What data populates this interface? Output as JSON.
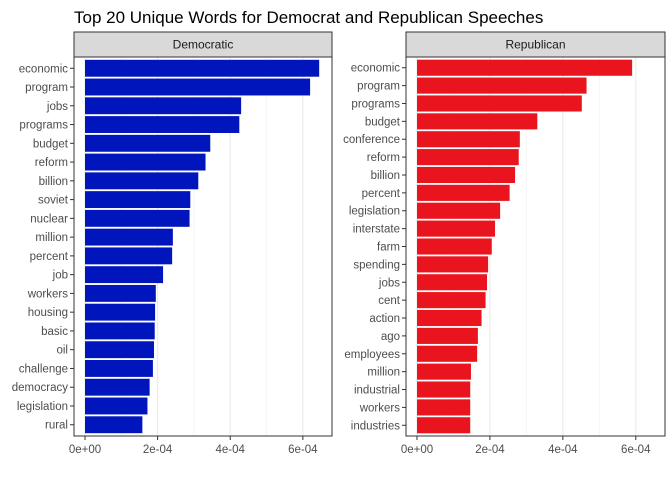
{
  "chart_data": {
    "type": "bar",
    "orientation": "horizontal",
    "title": "Top 20 Unique Words for Democrat and Republican Speeches",
    "xlabel": "",
    "ylabel": "",
    "xlim": [
      0,
      0.00065
    ],
    "x_ticks": [
      0,
      0.0002,
      0.0004,
      0.0006
    ],
    "x_tick_labels": [
      "0e+00",
      "2e-04",
      "4e-04",
      "6e-04"
    ],
    "grid": true,
    "panels": [
      {
        "name": "Democratic",
        "color": "#0015BC",
        "categories": [
          "economic",
          "program",
          "jobs",
          "programs",
          "budget",
          "reform",
          "billion",
          "soviet",
          "nuclear",
          "million",
          "percent",
          "job",
          "workers",
          "housing",
          "basic",
          "oil",
          "challenge",
          "democracy",
          "legislation",
          "rural"
        ],
        "values": [
          0.000645,
          0.00062,
          0.00043,
          0.000425,
          0.000345,
          0.000332,
          0.000312,
          0.00029,
          0.000288,
          0.000242,
          0.00024,
          0.000215,
          0.000195,
          0.000193,
          0.000192,
          0.00019,
          0.000187,
          0.000178,
          0.000172,
          0.000158
        ]
      },
      {
        "name": "Republican",
        "color": "#E9141D",
        "categories": [
          "economic",
          "program",
          "programs",
          "budget",
          "conference",
          "reform",
          "billion",
          "percent",
          "legislation",
          "interstate",
          "farm",
          "spending",
          "jobs",
          "cent",
          "action",
          "ago",
          "employees",
          "million",
          "industrial",
          "workers",
          "industries"
        ],
        "values": [
          0.00059,
          0.000465,
          0.000452,
          0.00033,
          0.000282,
          0.000279,
          0.000269,
          0.000254,
          0.000228,
          0.000214,
          0.000205,
          0.000195,
          0.000192,
          0.000188,
          0.000177,
          0.000167,
          0.000165,
          0.000148,
          0.000146,
          0.000146,
          0.000146
        ]
      }
    ]
  }
}
